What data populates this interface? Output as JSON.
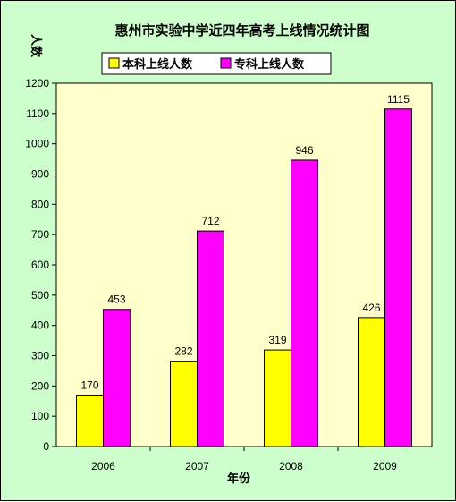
{
  "chart_data": {
    "type": "bar",
    "title": "惠州市实验中学近四年高考上线情况统计图",
    "xlabel": "年份",
    "ylabel": "人数",
    "categories": [
      "2006",
      "2007",
      "2008",
      "2009"
    ],
    "series": [
      {
        "name": "本科上线人数",
        "values": [
          170,
          282,
          319,
          426
        ],
        "color": "#ffff00"
      },
      {
        "name": "专科上线人数",
        "values": [
          453,
          712,
          946,
          1115
        ],
        "color": "#ff00ff"
      }
    ],
    "ylim": [
      0,
      1200
    ],
    "yticks": [
      0,
      100,
      200,
      300,
      400,
      500,
      600,
      700,
      800,
      900,
      1000,
      1100,
      1200
    ],
    "grid": false,
    "legend_position": "top",
    "plot_background": "#ffffcc",
    "figure_background": "#ccffcc"
  }
}
